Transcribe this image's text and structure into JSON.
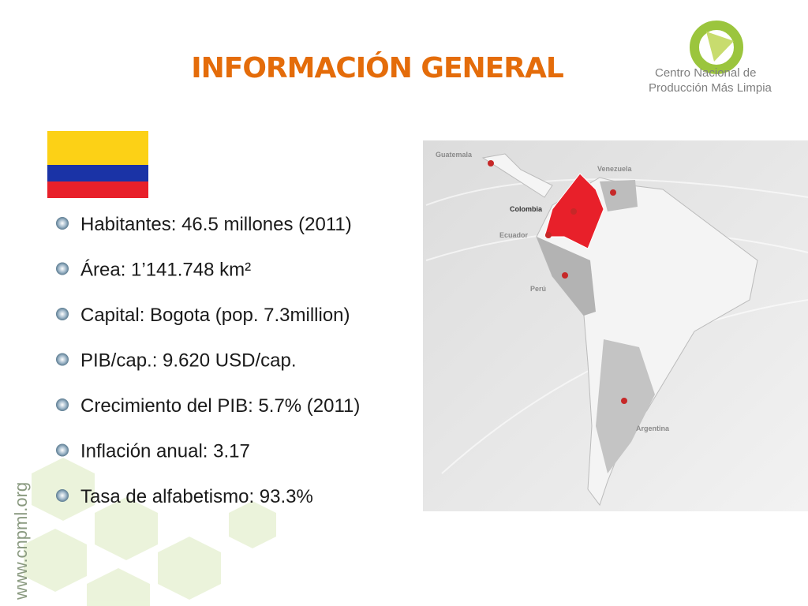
{
  "header": {
    "title": "INFORMACIÓN GENERAL",
    "logo": {
      "line1": "Centro Nacional de",
      "line2": "Producción Más Limpia"
    }
  },
  "bullets": [
    "Habitantes: 46.5 millones (2011)",
    "Área: 1’141.748 km²",
    "Capital: Bogota (pop. 7.3million)",
    "PIB/cap.: 9.620 USD/cap.",
    "Crecimiento del PIB: 5.7% (2011)",
    "Inflación anual: 3.17",
    "Tasa de alfabetismo: 93.3%"
  ],
  "map": {
    "labels": {
      "guatemala": "Guatemala",
      "venezuela": "Venezuela",
      "colombia": "Colombia",
      "ecuador": "Ecuador",
      "peru": "Perú",
      "argentina": "Argentina"
    }
  },
  "footer": {
    "website": "www.cnpml.org"
  }
}
